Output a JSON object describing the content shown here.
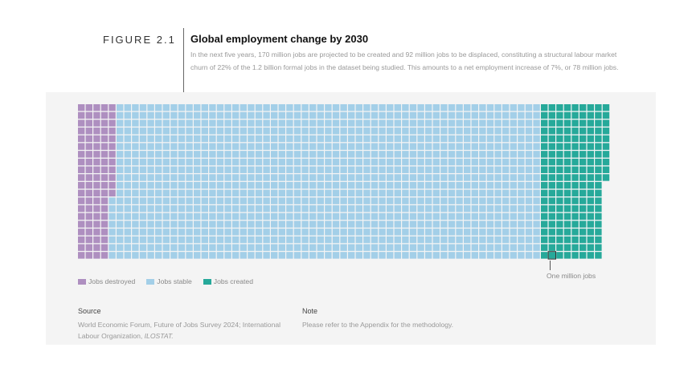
{
  "figure_label": "FIGURE 2.1",
  "chart_data": {
    "type": "waffle",
    "title": "Global employment change by 2030",
    "subtitle": "In the next five years, 170 million jobs are projected to be created and 92 million jobs to be displaced, constituting a structural labour market churn of 22% of the 1.2 billion formal jobs in the dataset being studied. This amounts to a net employment increase of 7%, or 78 million jobs.",
    "unit_label": "One million jobs",
    "rows": 20,
    "series": [
      {
        "name": "Jobs destroyed",
        "value": 92,
        "color": "#ae8fc0"
      },
      {
        "name": "Jobs stable",
        "value": 1108,
        "color": "#a3cfe8"
      },
      {
        "name": "Jobs created",
        "value": 170,
        "color": "#26a99a"
      }
    ]
  },
  "source": {
    "heading": "Source",
    "text": "World Economic Forum, Future of Jobs Survey 2024; International Labour Organization,",
    "italic": "ILOSTAT."
  },
  "note": {
    "heading": "Note",
    "text": "Please refer to the Appendix for the methodology."
  }
}
